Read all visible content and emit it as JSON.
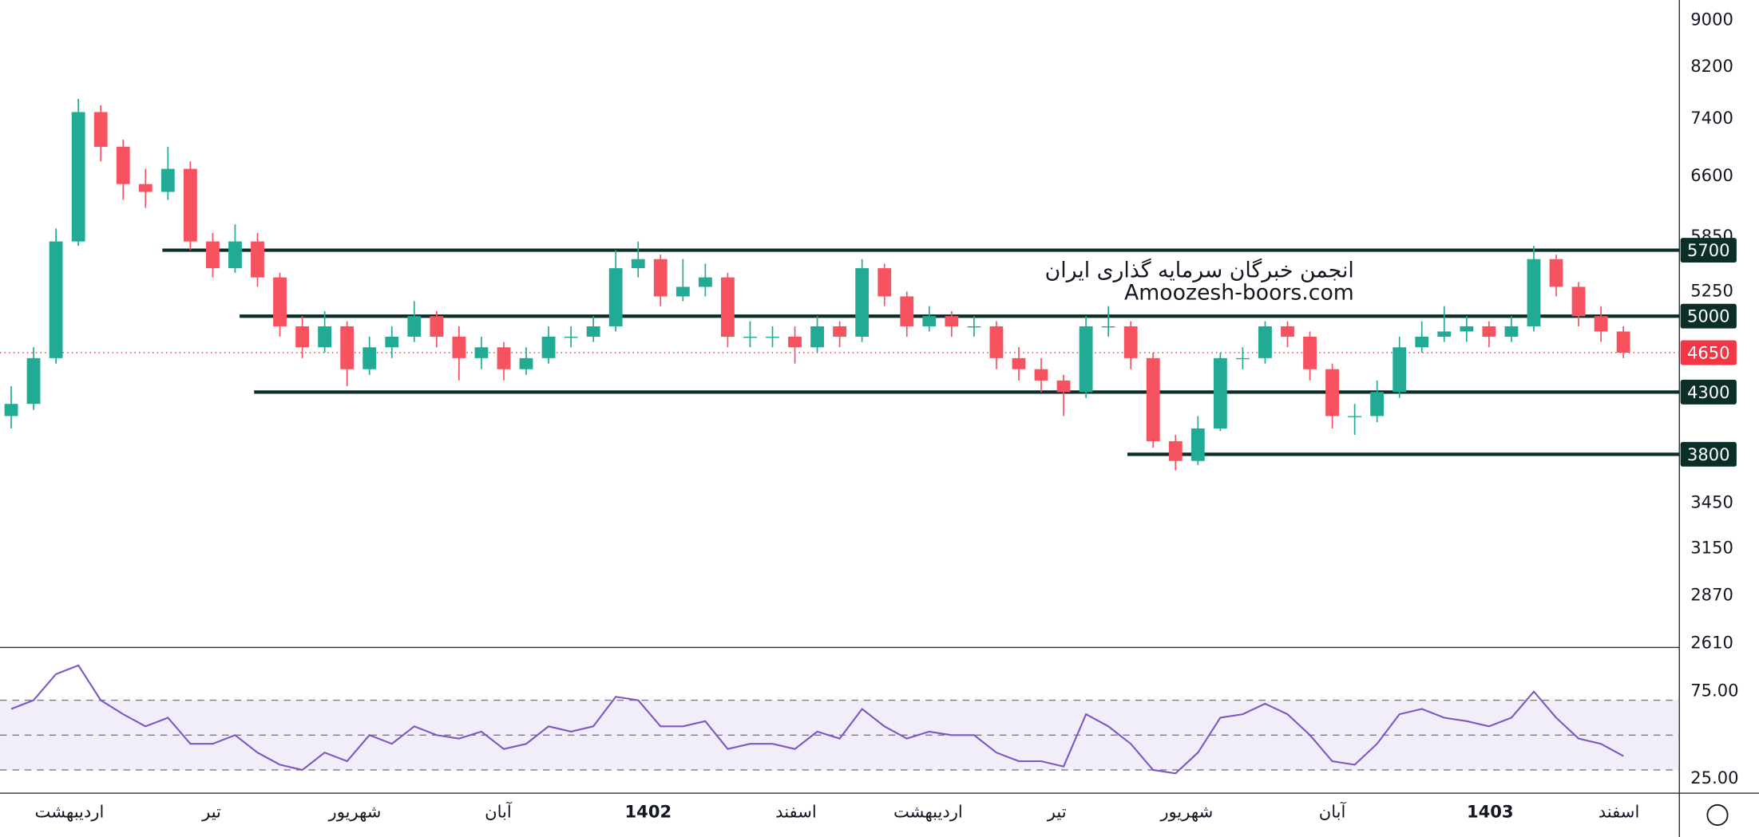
{
  "chart_data": {
    "type": "candlestick",
    "watermark": [
      "انجمن خبرگان سرمایه گذاری ایران",
      "Amoozesh-boors.com"
    ],
    "ylim": [
      2592,
      9370
    ],
    "log_scale": true,
    "yticks": [
      2610,
      2870,
      3150,
      3450,
      5250,
      5850,
      6600,
      7400,
      8200,
      9000
    ],
    "xlim": [
      0,
      75
    ],
    "xticks": [
      {
        "value": 3.1,
        "label": "اردیبهشت"
      },
      {
        "value": 9.45,
        "label": "تیر"
      },
      {
        "value": 15.85,
        "label": "شهریور"
      },
      {
        "value": 22.25,
        "label": "آبان"
      },
      {
        "value": 28.95,
        "label": "1402"
      },
      {
        "value": 35.55,
        "label": "اسفند"
      },
      {
        "value": 41.45,
        "label": "اردیبهشت"
      },
      {
        "value": 47.2,
        "label": "تیر"
      },
      {
        "value": 53.0,
        "label": "شهریور"
      },
      {
        "value": 59.5,
        "label": "آبان"
      },
      {
        "value": 66.55,
        "label": "1403"
      },
      {
        "value": 72.3,
        "label": "اسفند"
      }
    ],
    "up_color": "#22ab94",
    "down_color": "#f7525f",
    "open": [
      4100,
      4200,
      4600,
      5800,
      7500,
      7000,
      6500,
      6400,
      6700,
      5800,
      5500,
      5800,
      5400,
      4900,
      4700,
      4900,
      4500,
      4700,
      4800,
      5000,
      4800,
      4600,
      4700,
      4500,
      4600,
      4800,
      4800,
      4900,
      5500,
      5600,
      5200,
      5300,
      5400,
      4800,
      4800,
      4800,
      4700,
      4900,
      4800,
      5500,
      5200,
      4900,
      5000,
      4900,
      4900,
      4600,
      4500,
      4400,
      4300,
      4900,
      4900,
      4600,
      3900,
      3750,
      4000,
      4600,
      4600,
      4900,
      4800,
      4500,
      4100,
      4100,
      4300,
      4700,
      4800,
      4850,
      4900,
      4800,
      4900,
      5600,
      5300,
      5000,
      4850
    ],
    "high": [
      4350,
      4700,
      5950,
      7700,
      7600,
      7100,
      6700,
      7000,
      6800,
      5900,
      6000,
      5900,
      5450,
      5000,
      5050,
      4950,
      4800,
      4900,
      5150,
      5050,
      4900,
      4800,
      4750,
      4700,
      4900,
      4900,
      5000,
      5700,
      5800,
      5650,
      5600,
      5550,
      5450,
      4950,
      4900,
      4900,
      5000,
      4950,
      5600,
      5550,
      5250,
      5100,
      5050,
      5000,
      4950,
      4700,
      4600,
      4450,
      5000,
      5100,
      4950,
      4650,
      3950,
      4100,
      4650,
      4700,
      4950,
      4950,
      4850,
      4550,
      4200,
      4400,
      4800,
      4950,
      5100,
      5000,
      4950,
      5000,
      5750,
      5650,
      5350,
      5100,
      4900
    ],
    "low": [
      4000,
      4150,
      4550,
      5750,
      6800,
      6300,
      6200,
      6300,
      5700,
      5400,
      5450,
      5300,
      4800,
      4600,
      4650,
      4350,
      4450,
      4600,
      4750,
      4700,
      4400,
      4500,
      4400,
      4450,
      4550,
      4700,
      4750,
      4850,
      5400,
      5100,
      5150,
      5200,
      4700,
      4700,
      4700,
      4550,
      4650,
      4700,
      4750,
      5100,
      4800,
      4850,
      4800,
      4800,
      4500,
      4400,
      4300,
      4100,
      4250,
      4800,
      4500,
      3850,
      3680,
      3720,
      3980,
      4500,
      4550,
      4700,
      4400,
      4000,
      3950,
      4050,
      4250,
      4650,
      4750,
      4750,
      4700,
      4750,
      4850,
      5200,
      4900,
      4750,
      4600
    ],
    "close": [
      4200,
      4600,
      5800,
      7500,
      7000,
      6500,
      6400,
      6700,
      5800,
      5500,
      5800,
      5400,
      4900,
      4700,
      4900,
      4500,
      4700,
      4800,
      5000,
      4800,
      4600,
      4700,
      4500,
      4600,
      4800,
      4800,
      4900,
      5500,
      5600,
      5200,
      5300,
      5400,
      4800,
      4800,
      4800,
      4700,
      4900,
      4800,
      5500,
      5200,
      4900,
      5000,
      4900,
      4900,
      4600,
      4500,
      4400,
      4300,
      4900,
      4900,
      4600,
      3900,
      3750,
      4000,
      4600,
      4600,
      4900,
      4800,
      4500,
      4100,
      4100,
      4300,
      4700,
      4800,
      4850,
      4900,
      4800,
      4900,
      5600,
      5300,
      5000,
      4850,
      4650
    ],
    "levels": [
      {
        "value": 5700,
        "from": 7.25
      },
      {
        "value": 5000,
        "from": 10.7
      },
      {
        "value": 4300,
        "from": 11.35
      },
      {
        "value": 3800,
        "from": 50.35
      }
    ],
    "level_color": "#0b2e28",
    "last_price": 4650,
    "last_color": "#f23645",
    "rsi": {
      "color": "#7e57c2",
      "ylim": [
        17,
        100
      ],
      "yticks": [
        {
          "value": 25,
          "label": "25.00"
        },
        {
          "value": 75,
          "label": "75.00"
        }
      ],
      "bands": [
        30,
        50,
        70
      ],
      "values": [
        65,
        70,
        85,
        90,
        70,
        62,
        55,
        60,
        45,
        45,
        50,
        40,
        33,
        30,
        40,
        35,
        50,
        45,
        55,
        50,
        48,
        52,
        42,
        45,
        55,
        52,
        55,
        72,
        70,
        55,
        55,
        58,
        42,
        45,
        45,
        42,
        52,
        48,
        65,
        55,
        48,
        52,
        50,
        50,
        40,
        35,
        35,
        32,
        62,
        55,
        45,
        30,
        28,
        40,
        60,
        62,
        68,
        62,
        50,
        35,
        33,
        45,
        62,
        65,
        60,
        58,
        55,
        60,
        75,
        60,
        48,
        45,
        38
      ]
    }
  }
}
